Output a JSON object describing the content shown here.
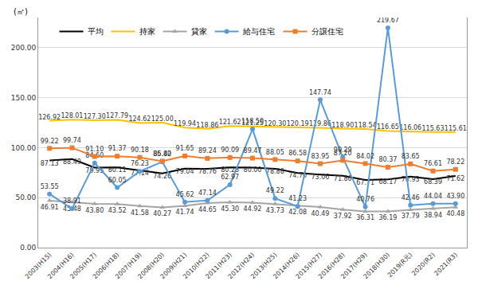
{
  "chart_data": {
    "type": "line",
    "ylabel": "(㎡)",
    "categories": [
      "2003(H15)",
      "2004(H16)",
      "2005(H17)",
      "2006(H18)",
      "2007(H19)",
      "2008(H20)",
      "2009(H21)",
      "2010(H22)",
      "2011(H23)",
      "2012(H24)",
      "2013(H25)",
      "2014(H26)",
      "2015(H27)",
      "2016(H28)",
      "2017(H29)",
      "2018(H30)",
      "2019(R元)",
      "2020(R2)",
      "2021(R3)"
    ],
    "series": [
      {
        "name": "平均",
        "color": "#000000",
        "marker": "none",
        "values": [
          87.13,
          88.49,
          79.95,
          80.11,
          77.14,
          74.26,
          79.04,
          78.76,
          80.28,
          80.0,
          78.88,
          74.7,
          73.06,
          71.86,
          67.71,
          68.17,
          70.93,
          68.39,
          71.62
        ]
      },
      {
        "name": "持家",
        "color": "#FFC000",
        "marker": "none",
        "values": [
          126.92,
          128.01,
          127.3,
          127.79,
          124.62,
          125.0,
          119.94,
          118.86,
          121.62,
          121.25,
          120.3,
          120.19,
          119.86,
          118.9,
          118.54,
          116.65,
          116.06,
          115.63,
          115.61
        ]
      },
      {
        "name": "貸家",
        "color": "#A5A5A5",
        "marker": "triangle",
        "values": [
          46.91,
          45.48,
          43.8,
          43.52,
          41.58,
          40.27,
          41.74,
          44.65,
          45.3,
          44.92,
          43.73,
          42.08,
          40.49,
          37.92,
          36.31,
          36.19,
          37.79,
          38.94,
          40.48
        ]
      },
      {
        "name": "給与住宅",
        "color": "#5B9BD5",
        "marker": "circle",
        "values": [
          53.55,
          38.91,
          84.6,
          60.05,
          76.23,
          85.8,
          45.62,
          47.14,
          62.97,
          118.5,
          49.22,
          41.23,
          147.74,
          90.29,
          40.76,
          219.67,
          42.46,
          44.04,
          43.9
        ]
      },
      {
        "name": "分譲住宅",
        "color": "#ED7D31",
        "marker": "square",
        "values": [
          99.22,
          99.74,
          91.1,
          91.37,
          90.18,
          86.42,
          91.65,
          89.24,
          90.09,
          89.47,
          88.05,
          86.58,
          83.95,
          87.2,
          84.02,
          80.37,
          83.65,
          76.61,
          78.22
        ]
      }
    ],
    "ylim": [
      0,
      230
    ],
    "yticks": [
      {
        "value": 0,
        "label": "0.00"
      },
      {
        "value": 50,
        "label": "50.00"
      },
      {
        "value": 100,
        "label": "100.00"
      },
      {
        "value": 150,
        "label": "150.00"
      },
      {
        "value": 200,
        "label": "200.00"
      }
    ],
    "grid": true,
    "legend": "top",
    "data_labels": true
  }
}
